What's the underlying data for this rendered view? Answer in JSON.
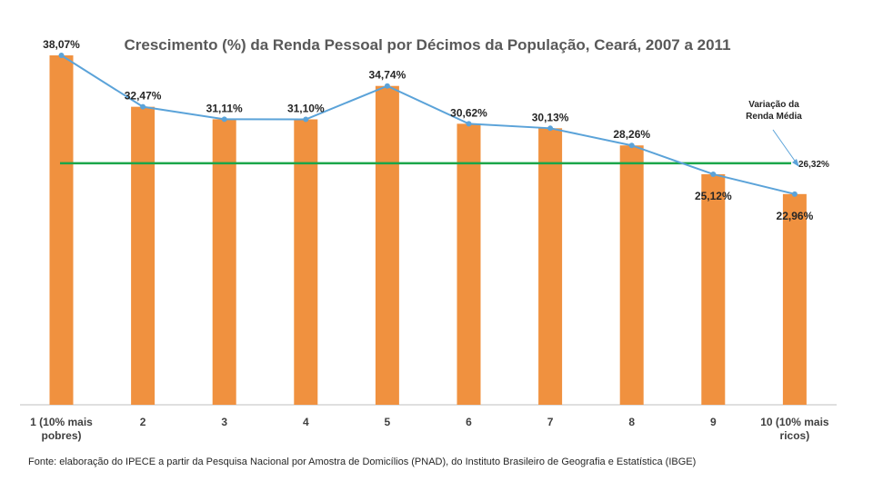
{
  "chart_data": {
    "type": "bar",
    "title": "Crescimento (%) da Renda Pessoal por Décimos da População, Ceará, 2007 a 2011",
    "categories": [
      [
        "1 (10% mais",
        "pobres)"
      ],
      [
        "2"
      ],
      [
        "3"
      ],
      [
        "4"
      ],
      [
        "5"
      ],
      [
        "6"
      ],
      [
        "7"
      ],
      [
        "8"
      ],
      [
        "9"
      ],
      [
        "10 (10% mais",
        "ricos)"
      ]
    ],
    "values": [
      38.07,
      32.47,
      31.11,
      31.1,
      34.74,
      30.62,
      30.13,
      28.26,
      25.12,
      22.96
    ],
    "value_labels": [
      "38,07%",
      "32,47%",
      "31,11%",
      "31,10%",
      "34,74%",
      "30,62%",
      "30,13%",
      "28,26%",
      "25,12%",
      "22,96%"
    ],
    "line_overlay": true,
    "reference_line": {
      "value": 26.32,
      "label": "26,32%",
      "annotation": [
        "Variação da",
        "Renda Média"
      ],
      "color": "#1aa64a"
    },
    "ylim": [
      0,
      40
    ],
    "grid": false,
    "xlabel": "",
    "ylabel": "",
    "colors": {
      "bar": "#f0913f",
      "line": "#5ba3d9",
      "axis": "#bfbfbf"
    }
  },
  "source": "Fonte: elaboração do IPECE a partir da Pesquisa Nacional por Amostra de Domicílios (PNAD), do Instituto Brasileiro de Geografia e Estatística (IBGE)"
}
